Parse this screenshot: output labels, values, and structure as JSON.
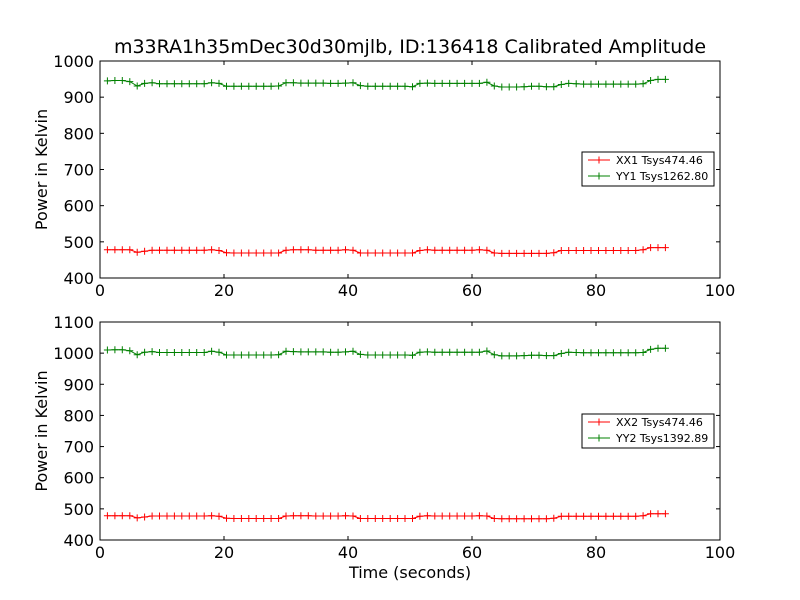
{
  "figure": {
    "title": "m33RA1h35mDec30d30mjlb, ID:136418 Calibrated Amplitude"
  },
  "colors": {
    "xx": "#ff0000",
    "yy": "#008000",
    "axes": "#000000"
  },
  "chart_data": [
    {
      "type": "line",
      "title": "m33RA1h35mDec30d30mjlb, ID:136418 Calibrated Amplitude",
      "xlabel": "",
      "ylabel": "Power in Kelvin",
      "xlim": [
        0,
        100
      ],
      "ylim": [
        400,
        1000
      ],
      "xticks": [
        0,
        20,
        40,
        60,
        80,
        100
      ],
      "yticks": [
        400,
        500,
        600,
        700,
        800,
        900,
        1000
      ],
      "grid": false,
      "legend_position": "right",
      "x": [
        1.2,
        2.4,
        3.6,
        4.8,
        6.0,
        7.2,
        8.4,
        9.6,
        10.8,
        12.0,
        13.2,
        14.4,
        15.6,
        16.8,
        18.0,
        19.2,
        20.4,
        21.6,
        22.8,
        24.0,
        25.2,
        26.4,
        27.6,
        28.8,
        30.0,
        31.2,
        32.4,
        33.6,
        34.8,
        36.0,
        37.2,
        38.4,
        39.6,
        40.8,
        42.0,
        43.2,
        44.4,
        45.6,
        46.8,
        48.0,
        49.2,
        50.4,
        51.6,
        52.8,
        54.0,
        55.2,
        56.4,
        57.6,
        58.8,
        60.0,
        61.2,
        62.4,
        63.6,
        64.8,
        66.0,
        67.2,
        68.4,
        69.6,
        70.8,
        72.0,
        73.2,
        74.4,
        75.6,
        76.8,
        78.0,
        79.2,
        80.4,
        81.6,
        82.8,
        84.0,
        85.2,
        86.4,
        87.6,
        88.8,
        90.0,
        91.2
      ],
      "series": [
        {
          "name": "XX1 Tsys474.46",
          "color": "#ff0000",
          "values": [
            478,
            478,
            478,
            478,
            471,
            474,
            477,
            477,
            477,
            477,
            477,
            477,
            477,
            477,
            478,
            476,
            470,
            469,
            469,
            469,
            469,
            469,
            469,
            469,
            477,
            478,
            478,
            478,
            477,
            477,
            477,
            477,
            478,
            477,
            469,
            469,
            469,
            469,
            469,
            469,
            469,
            469,
            476,
            478,
            477,
            477,
            477,
            477,
            477,
            477,
            478,
            477,
            469,
            468,
            468,
            468,
            468,
            468,
            468,
            468,
            470,
            476,
            476,
            476,
            476,
            476,
            476,
            476,
            476,
            476,
            476,
            476,
            478,
            484,
            484,
            484
          ]
        },
        {
          "name": "YY1 Tsys1262.80",
          "color": "#008000",
          "values": [
            945,
            946,
            946,
            943,
            931,
            938,
            940,
            937,
            937,
            937,
            937,
            937,
            937,
            937,
            940,
            938,
            930,
            930,
            930,
            930,
            930,
            930,
            930,
            931,
            940,
            940,
            939,
            939,
            939,
            939,
            938,
            938,
            939,
            940,
            932,
            930,
            930,
            930,
            930,
            930,
            930,
            929,
            938,
            939,
            938,
            938,
            938,
            938,
            938,
            938,
            938,
            941,
            931,
            928,
            928,
            928,
            929,
            930,
            930,
            929,
            929,
            935,
            938,
            937,
            936,
            936,
            936,
            936,
            936,
            936,
            936,
            936,
            937,
            946,
            949,
            949
          ]
        }
      ]
    },
    {
      "type": "line",
      "title": "",
      "xlabel": "Time (seconds)",
      "ylabel": "Power in Kelvin",
      "xlim": [
        0,
        100
      ],
      "ylim": [
        400,
        1100
      ],
      "xticks": [
        0,
        20,
        40,
        60,
        80,
        100
      ],
      "yticks": [
        400,
        500,
        600,
        700,
        800,
        900,
        1000,
        1100
      ],
      "grid": false,
      "legend_position": "right",
      "x": [
        1.2,
        2.4,
        3.6,
        4.8,
        6.0,
        7.2,
        8.4,
        9.6,
        10.8,
        12.0,
        13.2,
        14.4,
        15.6,
        16.8,
        18.0,
        19.2,
        20.4,
        21.6,
        22.8,
        24.0,
        25.2,
        26.4,
        27.6,
        28.8,
        30.0,
        31.2,
        32.4,
        33.6,
        34.8,
        36.0,
        37.2,
        38.4,
        39.6,
        40.8,
        42.0,
        43.2,
        44.4,
        45.6,
        46.8,
        48.0,
        49.2,
        50.4,
        51.6,
        52.8,
        54.0,
        55.2,
        56.4,
        57.6,
        58.8,
        60.0,
        61.2,
        62.4,
        63.6,
        64.8,
        66.0,
        67.2,
        68.4,
        69.6,
        70.8,
        72.0,
        73.2,
        74.4,
        75.6,
        76.8,
        78.0,
        79.2,
        80.4,
        81.6,
        82.8,
        84.0,
        85.2,
        86.4,
        87.6,
        88.8,
        90.0,
        91.2
      ],
      "series": [
        {
          "name": "XX2 Tsys474.46",
          "color": "#ff0000",
          "values": [
            478,
            478,
            478,
            478,
            471,
            474,
            477,
            477,
            477,
            477,
            477,
            477,
            477,
            477,
            478,
            476,
            470,
            469,
            469,
            469,
            469,
            469,
            469,
            469,
            477,
            478,
            478,
            478,
            477,
            477,
            477,
            477,
            478,
            477,
            469,
            469,
            469,
            469,
            469,
            469,
            469,
            469,
            476,
            478,
            477,
            477,
            477,
            477,
            477,
            477,
            478,
            477,
            469,
            468,
            468,
            468,
            468,
            468,
            468,
            468,
            470,
            476,
            476,
            476,
            476,
            476,
            476,
            476,
            476,
            476,
            476,
            476,
            478,
            484,
            484,
            484
          ]
        },
        {
          "name": "YY2 Tsys1392.89",
          "color": "#008000",
          "values": [
            1010,
            1011,
            1011,
            1008,
            995,
            1003,
            1005,
            1002,
            1002,
            1002,
            1002,
            1002,
            1002,
            1002,
            1006,
            1003,
            994,
            994,
            994,
            994,
            994,
            994,
            994,
            995,
            1006,
            1005,
            1004,
            1004,
            1004,
            1004,
            1003,
            1003,
            1004,
            1006,
            996,
            994,
            994,
            994,
            994,
            994,
            994,
            993,
            1003,
            1004,
            1003,
            1003,
            1003,
            1003,
            1003,
            1003,
            1003,
            1007,
            995,
            991,
            991,
            991,
            992,
            993,
            993,
            992,
            992,
            999,
            1003,
            1002,
            1001,
            1001,
            1001,
            1001,
            1001,
            1001,
            1001,
            1001,
            1002,
            1012,
            1016,
            1016
          ]
        }
      ]
    }
  ]
}
